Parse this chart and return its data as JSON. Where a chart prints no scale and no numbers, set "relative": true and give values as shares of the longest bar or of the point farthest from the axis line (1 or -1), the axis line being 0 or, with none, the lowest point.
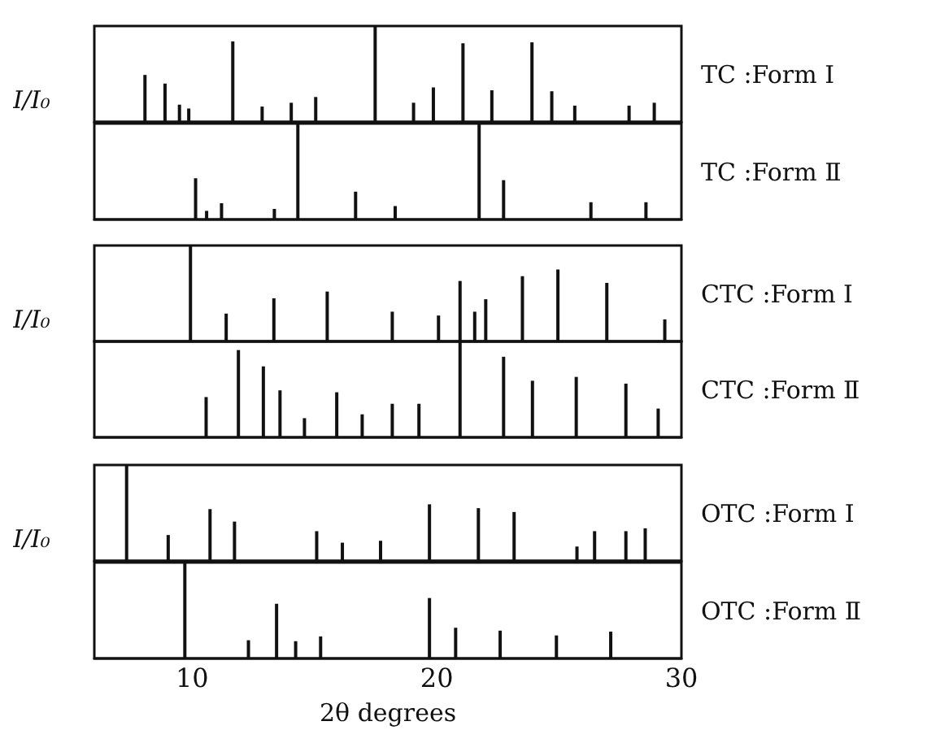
{
  "chart_data": [
    {
      "type": "bar",
      "relative": true,
      "ylabel": "I/I₀",
      "legend": "right",
      "xlim": [
        6,
        30
      ],
      "xticks": [
        10,
        20,
        30
      ],
      "tick_labels": false,
      "series": [
        {
          "name": "TC :Form Ⅰ",
          "color": "#111111",
          "x": [
            8.07,
            8.89,
            9.48,
            9.86,
            11.66,
            12.86,
            14.05,
            15.05,
            17.48,
            19.05,
            19.86,
            21.07,
            22.25,
            23.89,
            24.7,
            25.64,
            27.86,
            28.89
          ],
          "values": [
            0.49,
            0.4,
            0.18,
            0.14,
            0.84,
            0.16,
            0.2,
            0.26,
            1,
            0.2,
            0.36,
            0.82,
            0.33,
            0.83,
            0.32,
            0.17,
            0.17,
            0.2
          ]
        }
      ]
    },
    {
      "type": "bar",
      "relative": true,
      "legend": "right",
      "xlim": [
        6,
        30
      ],
      "xticks": [
        10,
        20,
        30
      ],
      "tick_labels": false,
      "series": [
        {
          "name": "TC :Form Ⅱ",
          "color": "#111111",
          "x": [
            10.14,
            10.59,
            11.2,
            13.36,
            14.32,
            16.68,
            18.3,
            21.73,
            22.73,
            26.3,
            28.55
          ],
          "values": [
            0.43,
            0.09,
            0.17,
            0.11,
            1,
            0.29,
            0.14,
            1,
            0.41,
            0.18,
            0.18
          ]
        }
      ]
    },
    {
      "type": "bar",
      "relative": true,
      "ylabel": "I/I₀",
      "legend": "right",
      "xlim": [
        6,
        30
      ],
      "xticks": [
        10,
        20,
        30
      ],
      "tick_labels": false,
      "series": [
        {
          "name": "CTC :Form Ⅰ",
          "color": "#111111",
          "x": [
            9.93,
            11.39,
            13.34,
            15.52,
            18.18,
            20.07,
            20.95,
            21.55,
            22.0,
            23.5,
            24.95,
            26.95,
            29.32
          ],
          "values": [
            1,
            0.29,
            0.45,
            0.52,
            0.31,
            0.27,
            0.63,
            0.31,
            0.44,
            0.68,
            0.75,
            0.61,
            0.23
          ]
        }
      ]
    },
    {
      "type": "bar",
      "relative": true,
      "legend": "right",
      "xlim": [
        6,
        30
      ],
      "xticks": [
        10,
        20,
        30
      ],
      "tick_labels": false,
      "series": [
        {
          "name": "CTC :Form Ⅱ",
          "color": "#111111",
          "x": [
            10.57,
            11.89,
            12.91,
            13.59,
            14.59,
            15.91,
            16.95,
            18.18,
            19.27,
            20.95,
            22.73,
            23.91,
            25.7,
            27.73,
            29.05
          ],
          "values": [
            0.42,
            0.91,
            0.74,
            0.49,
            0.2,
            0.47,
            0.24,
            0.35,
            0.35,
            1,
            0.84,
            0.59,
            0.63,
            0.56,
            0.3
          ]
        }
      ]
    },
    {
      "type": "bar",
      "relative": true,
      "ylabel": "I/I₀",
      "legend": "right",
      "xlim": [
        6,
        30
      ],
      "xticks": [
        10,
        20,
        30
      ],
      "tick_labels": false,
      "series": [
        {
          "name": "OTC :Form Ⅰ",
          "color": "#111111",
          "x": [
            7.32,
            9.02,
            10.73,
            11.73,
            15.09,
            16.14,
            17.7,
            19.7,
            21.7,
            23.16,
            25.73,
            26.45,
            27.73,
            28.52
          ],
          "values": [
            1,
            0.27,
            0.54,
            0.41,
            0.31,
            0.19,
            0.21,
            0.59,
            0.55,
            0.51,
            0.15,
            0.31,
            0.31,
            0.34
          ]
        }
      ]
    },
    {
      "type": "bar",
      "relative": true,
      "xlabel": "2θ degrees",
      "legend": "right",
      "xlim": [
        6,
        30
      ],
      "xticks": [
        10,
        20,
        30
      ],
      "tick_labels": "x",
      "series": [
        {
          "name": "OTC :Form Ⅱ",
          "color": "#111111",
          "x": [
            9.7,
            12.3,
            13.45,
            14.23,
            15.25,
            19.7,
            20.77,
            22.59,
            24.89,
            27.11
          ],
          "values": [
            1,
            0.19,
            0.57,
            0.18,
            0.23,
            0.63,
            0.32,
            0.29,
            0.24,
            0.28
          ]
        }
      ]
    }
  ]
}
